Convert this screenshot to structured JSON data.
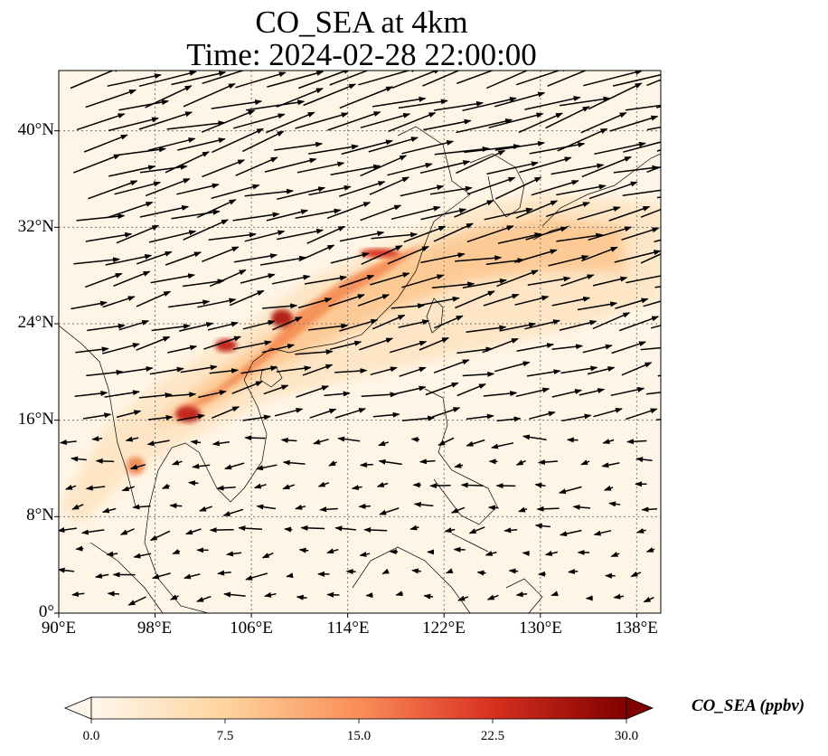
{
  "title": "CO_SEA at 4km",
  "subtitle": "Time: 2024-02-28 22:00:00",
  "map": {
    "variable": "CO_SEA",
    "level": "4km",
    "extent": {
      "lon": [
        90,
        140
      ],
      "lat": [
        0,
        45
      ]
    },
    "x_ticks": [
      {
        "value": 90,
        "label": "90°E"
      },
      {
        "value": 98,
        "label": "98°E"
      },
      {
        "value": 106,
        "label": "106°E"
      },
      {
        "value": 114,
        "label": "114°E"
      },
      {
        "value": 122,
        "label": "122°E"
      },
      {
        "value": 130,
        "label": "130°E"
      },
      {
        "value": 138,
        "label": "138°E"
      }
    ],
    "y_ticks": [
      {
        "value": 0,
        "label": "0°"
      },
      {
        "value": 8,
        "label": "8°N"
      },
      {
        "value": 16,
        "label": "16°N"
      },
      {
        "value": 24,
        "label": "24°N"
      },
      {
        "value": 32,
        "label": "32°N"
      },
      {
        "value": 40,
        "label": "40°N"
      }
    ],
    "gridlines": "dotted",
    "background_color": "#fff5e6",
    "coastline_color": "#000000",
    "wind_vectors": true
  },
  "colorbar": {
    "label": "CO_SEA (ppbv)",
    "min": 0.0,
    "max": 30.0,
    "ticks": [
      {
        "value": 0.0,
        "label": "0.0"
      },
      {
        "value": 7.5,
        "label": "7.5"
      },
      {
        "value": 15.0,
        "label": "15.0"
      },
      {
        "value": 22.5,
        "label": "22.5"
      },
      {
        "value": 30.0,
        "label": "30.0"
      }
    ],
    "colormap": "OrRd",
    "colors": [
      "#fff7ec",
      "#fdd49e",
      "#fc8d59",
      "#d7301f",
      "#7f0000"
    ],
    "extend": "both"
  }
}
